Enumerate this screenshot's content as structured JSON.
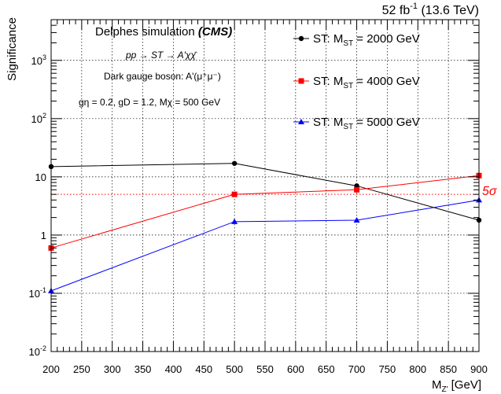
{
  "chart_data": {
    "type": "line",
    "lumi_label": {
      "prefix": "52 fb",
      "sup": "-1",
      "suffix": " (13.6 TeV)"
    },
    "xlabel": {
      "main": "M",
      "sub": "Z'",
      "unit": " [GeV]"
    },
    "ylabel": "Significance",
    "xlim": [
      200,
      900
    ],
    "ylim": [
      0.01,
      5000
    ],
    "yscale": "log",
    "grid": true,
    "x_ticks": [
      "200",
      "250",
      "300",
      "350",
      "400",
      "450",
      "500",
      "550",
      "600",
      "650",
      "700",
      "750",
      "800",
      "850",
      "900"
    ],
    "y_ticks": [
      {
        "value": 0.01,
        "base": "10",
        "exp": "-2"
      },
      {
        "value": 0.1,
        "base": "10",
        "exp": "-1"
      },
      {
        "value": 1,
        "base": "1",
        "exp": ""
      },
      {
        "value": 10,
        "base": "10",
        "exp": ""
      },
      {
        "value": 100,
        "base": "10",
        "exp": "2"
      },
      {
        "value": 1000,
        "base": "10",
        "exp": "3"
      }
    ],
    "annotations": {
      "title": "Delphes simulation",
      "title_tag": "(CMS)",
      "process": "pp → ST → A'χχ̄",
      "boson": "Dark gauge boson: A'(μ⁺μ⁻)",
      "couplings": "gη = 0.2, gD = 1.2, Mχ = 500 GeV",
      "threshold_label": "5σ"
    },
    "threshold": {
      "value": 5,
      "color": "#ff0000"
    },
    "series": [
      {
        "name": "ST: M_ST = 2000 GeV",
        "color": "#000000",
        "marker": "circle",
        "x": [
          200,
          500,
          700,
          900
        ],
        "y": [
          15,
          17,
          7,
          1.8
        ]
      },
      {
        "name": "ST: M_ST = 4000 GeV",
        "color": "#ff0000",
        "marker": "square",
        "x": [
          200,
          500,
          700,
          900
        ],
        "y": [
          0.6,
          5,
          6,
          10.5
        ]
      },
      {
        "name": "ST: M_ST = 5000 GeV",
        "color": "#0000ff",
        "marker": "triangle",
        "x": [
          200,
          500,
          700,
          900
        ],
        "y": [
          0.11,
          1.7,
          1.8,
          4
        ]
      }
    ],
    "legend_position": "top-right"
  }
}
